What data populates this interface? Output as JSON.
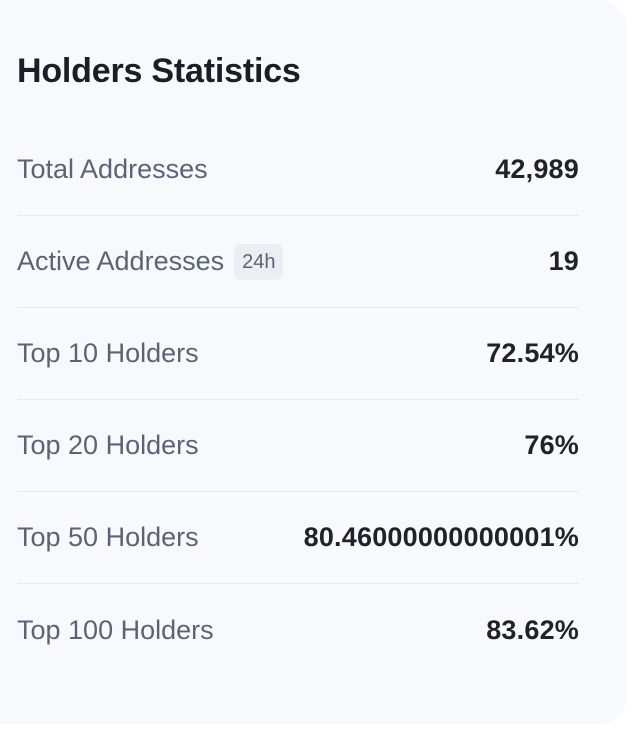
{
  "panel": {
    "title": "Holders Statistics"
  },
  "stats": {
    "rows": [
      {
        "label": "Total Addresses",
        "badge": null,
        "value": "42,989"
      },
      {
        "label": "Active Addresses",
        "badge": "24h",
        "value": "19"
      },
      {
        "label": "Top 10 Holders",
        "badge": null,
        "value": "72.54%"
      },
      {
        "label": "Top 20 Holders",
        "badge": null,
        "value": "76%"
      },
      {
        "label": "Top 50 Holders",
        "badge": null,
        "value": "80.46000000000001%"
      },
      {
        "label": "Top 100 Holders",
        "badge": null,
        "value": "83.62%"
      }
    ]
  },
  "colors": {
    "card_background": "#f8f9fc",
    "label_text": "#5b6475",
    "value_text": "#1f2228",
    "divider": "#e6e8ee"
  }
}
